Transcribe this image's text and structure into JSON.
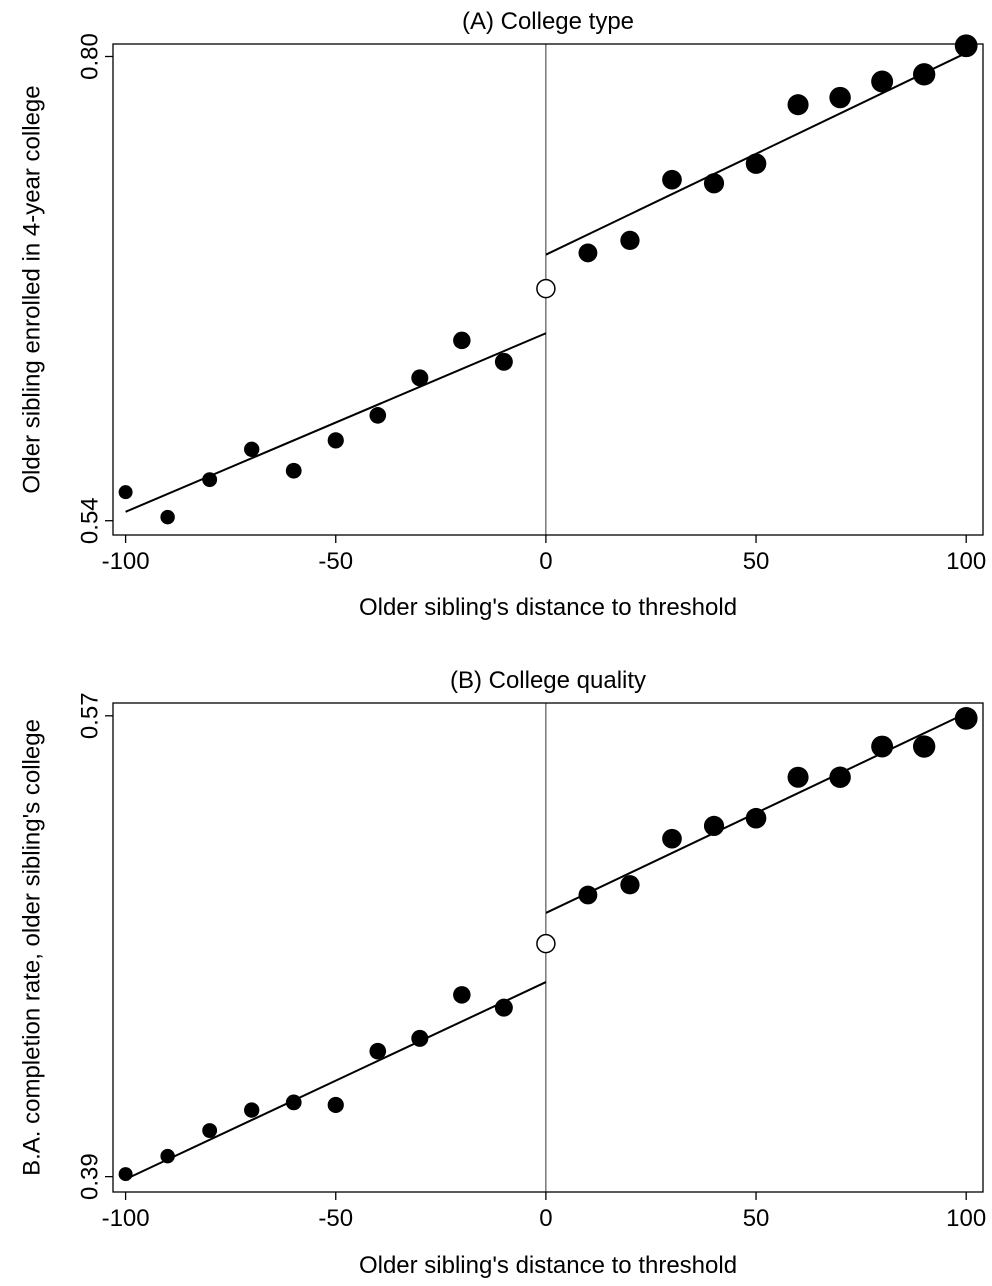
{
  "chart_data": [
    {
      "type": "scatter",
      "title": "(A) College type",
      "xlabel": "Older sibling's distance to threshold",
      "ylabel": "Older sibling enrolled in 4-year college",
      "xlim": [
        -103,
        104
      ],
      "ylim": [
        0.532,
        0.807
      ],
      "xticks": [
        -100,
        -50,
        0,
        50,
        100
      ],
      "xtick_labels": [
        "-100",
        "-50",
        "0",
        "50",
        "100"
      ],
      "yticks": [
        0.54,
        0.8
      ],
      "ytick_labels": [
        "0.54",
        "0.80"
      ],
      "grid": false,
      "cutoff_x": 0,
      "points": [
        {
          "x": -100,
          "y": 0.556,
          "hollow": false
        },
        {
          "x": -90,
          "y": 0.542,
          "hollow": false
        },
        {
          "x": -80,
          "y": 0.563,
          "hollow": false
        },
        {
          "x": -70,
          "y": 0.58,
          "hollow": false
        },
        {
          "x": -60,
          "y": 0.568,
          "hollow": false
        },
        {
          "x": -50,
          "y": 0.585,
          "hollow": false
        },
        {
          "x": -40,
          "y": 0.599,
          "hollow": false
        },
        {
          "x": -30,
          "y": 0.62,
          "hollow": false
        },
        {
          "x": -20,
          "y": 0.641,
          "hollow": false
        },
        {
          "x": -10,
          "y": 0.629,
          "hollow": false
        },
        {
          "x": 0,
          "y": 0.67,
          "hollow": true
        },
        {
          "x": 10,
          "y": 0.69,
          "hollow": false
        },
        {
          "x": 20,
          "y": 0.697,
          "hollow": false
        },
        {
          "x": 30,
          "y": 0.731,
          "hollow": false
        },
        {
          "x": 40,
          "y": 0.729,
          "hollow": false
        },
        {
          "x": 50,
          "y": 0.74,
          "hollow": false
        },
        {
          "x": 60,
          "y": 0.773,
          "hollow": false
        },
        {
          "x": 70,
          "y": 0.777,
          "hollow": false
        },
        {
          "x": 80,
          "y": 0.786,
          "hollow": false
        },
        {
          "x": 90,
          "y": 0.79,
          "hollow": false
        },
        {
          "x": 100,
          "y": 0.806,
          "hollow": false
        }
      ],
      "fit_lines": [
        {
          "x": [
            -100,
            0
          ],
          "y": [
            0.545,
            0.645
          ]
        },
        {
          "x": [
            0,
            100
          ],
          "y": [
            0.689,
            0.802
          ]
        }
      ]
    },
    {
      "type": "scatter",
      "title": "(B) College quality",
      "xlabel": "Older sibling's distance to threshold",
      "ylabel": "B.A. completion rate, older sibling's college",
      "xlim": [
        -103,
        104
      ],
      "ylim": [
        0.384,
        0.575
      ],
      "xticks": [
        -100,
        -50,
        0,
        50,
        100
      ],
      "xtick_labels": [
        "-100",
        "-50",
        "0",
        "50",
        "100"
      ],
      "yticks": [
        0.39,
        0.57
      ],
      "ytick_labels": [
        "0.39",
        "0.57"
      ],
      "grid": false,
      "cutoff_x": 0,
      "points": [
        {
          "x": -100,
          "y": 0.391,
          "hollow": false
        },
        {
          "x": -90,
          "y": 0.398,
          "hollow": false
        },
        {
          "x": -80,
          "y": 0.408,
          "hollow": false
        },
        {
          "x": -70,
          "y": 0.416,
          "hollow": false
        },
        {
          "x": -60,
          "y": 0.419,
          "hollow": false
        },
        {
          "x": -50,
          "y": 0.418,
          "hollow": false
        },
        {
          "x": -40,
          "y": 0.439,
          "hollow": false
        },
        {
          "x": -30,
          "y": 0.444,
          "hollow": false
        },
        {
          "x": -20,
          "y": 0.461,
          "hollow": false
        },
        {
          "x": -10,
          "y": 0.456,
          "hollow": false
        },
        {
          "x": 0,
          "y": 0.481,
          "hollow": true
        },
        {
          "x": 10,
          "y": 0.5,
          "hollow": false
        },
        {
          "x": 20,
          "y": 0.504,
          "hollow": false
        },
        {
          "x": 30,
          "y": 0.522,
          "hollow": false
        },
        {
          "x": 40,
          "y": 0.527,
          "hollow": false
        },
        {
          "x": 50,
          "y": 0.53,
          "hollow": false
        },
        {
          "x": 60,
          "y": 0.546,
          "hollow": false
        },
        {
          "x": 70,
          "y": 0.546,
          "hollow": false
        },
        {
          "x": 80,
          "y": 0.558,
          "hollow": false
        },
        {
          "x": 90,
          "y": 0.558,
          "hollow": false
        },
        {
          "x": 100,
          "y": 0.569,
          "hollow": false
        }
      ],
      "fit_lines": [
        {
          "x": [
            -100,
            0
          ],
          "y": [
            0.389,
            0.466
          ]
        },
        {
          "x": [
            0,
            100
          ],
          "y": [
            0.493,
            0.571
          ]
        }
      ]
    }
  ]
}
